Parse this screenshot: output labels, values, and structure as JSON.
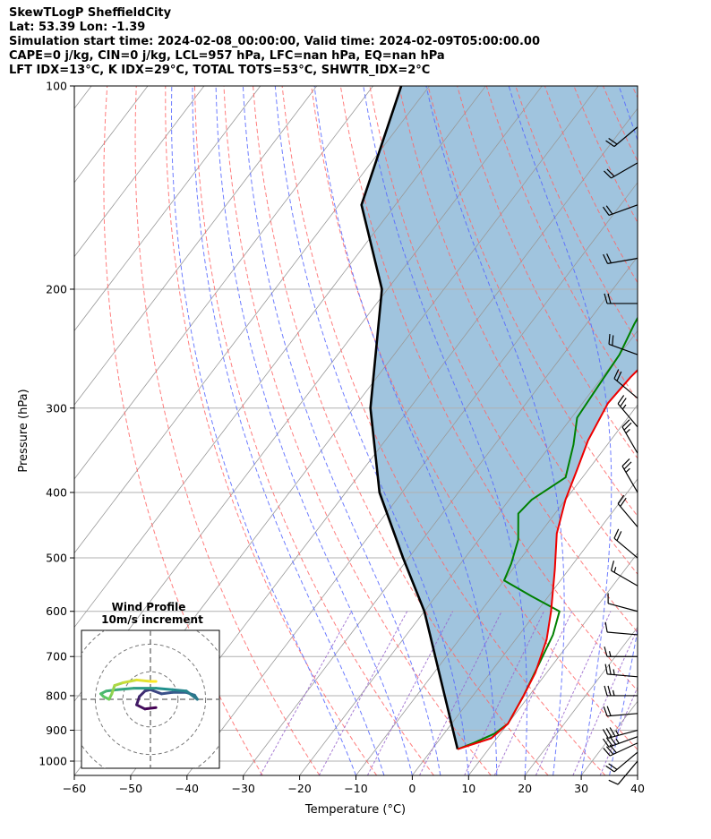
{
  "header": {
    "line1": "SkewTLogP SheffieldCity",
    "line2": "Lat: 53.39   Lon: -1.39",
    "line3": "Simulation start time: 2024-02-08_00:00:00, Valid time: 2024-02-09T05:00:00.00",
    "line4": "CAPE=0 j/kg, CIN=0 j/kg, LCL=957 hPa, LFC=nan hPa, EQ=nan hPa",
    "line5": "LFT IDX=13°C, K IDX=29°C, TOTAL TOTS=53°C, SHWTR_IDX=2°C"
  },
  "colors": {
    "temperature": "#ee0000",
    "dewpoint": "#008000",
    "parcel": "#000000",
    "fill": "#a0c4de",
    "dry_adiabat": "#ff6666",
    "moist_adiabat": "#5566ff",
    "mixing_ratio": "#9966cc",
    "isotherm": "#999999",
    "grid": "#b0b0b0"
  },
  "chart_data": [
    {
      "type": "line",
      "subtype": "skew-T log-p",
      "xlabel": "Temperature (°C)",
      "ylabel": "Pressure (hPa)",
      "x_ticks": [
        -60,
        -50,
        -40,
        -30,
        -20,
        -10,
        0,
        10,
        20,
        30,
        40
      ],
      "y_ticks": [
        100,
        200,
        300,
        400,
        500,
        600,
        700,
        800,
        900,
        1000
      ],
      "xlim": [
        -60,
        40
      ],
      "ylim": [
        1050,
        100
      ],
      "yscale": "log",
      "grid": true,
      "series": [
        {
          "role": "temperature",
          "points": [
            [
              4.5,
              960
            ],
            [
              9,
              925
            ],
            [
              10,
              880
            ],
            [
              9,
              800
            ],
            [
              8,
              740
            ],
            [
              5.5,
              660
            ],
            [
              2.5,
              600
            ],
            [
              -2.5,
              520
            ],
            [
              -7,
              460
            ],
            [
              -10,
              410
            ],
            [
              -12,
              370
            ],
            [
              -14,
              335
            ],
            [
              -15.5,
              295
            ],
            [
              -15,
              270
            ],
            [
              -14,
              250
            ],
            [
              -12,
              225
            ],
            [
              -9.5,
              210
            ],
            [
              -6,
              190
            ],
            [
              -6,
              170
            ],
            [
              -5,
              150
            ],
            [
              -3,
              130
            ],
            [
              0,
              110
            ],
            [
              2,
              100
            ]
          ]
        },
        {
          "role": "dewpoint",
          "points": [
            [
              4.5,
              960
            ],
            [
              6.5,
              940
            ],
            [
              9,
              910
            ],
            [
              10,
              880
            ],
            [
              9,
              800
            ],
            [
              7.5,
              720
            ],
            [
              6,
              650
            ],
            [
              4,
              600
            ],
            [
              -3,
              570
            ],
            [
              -10,
              540
            ],
            [
              -11,
              510
            ],
            [
              -13,
              470
            ],
            [
              -16.5,
              430
            ],
            [
              -16,
              410
            ],
            [
              -13,
              380
            ],
            [
              -16,
              340
            ],
            [
              -19,
              310
            ],
            [
              -19.5,
              280
            ],
            [
              -20,
              250
            ],
            [
              -21.5,
              225
            ],
            [
              -22.5,
              205
            ],
            [
              -21,
              190
            ],
            [
              -19.5,
              170
            ],
            [
              -18,
              150
            ],
            [
              -14,
              125
            ],
            [
              -10,
              110
            ],
            [
              -6,
              100
            ]
          ]
        },
        {
          "role": "parcel",
          "points": [
            [
              4.5,
              960
            ],
            [
              -5,
              800
            ],
            [
              -20,
              600
            ],
            [
              -31,
              500
            ],
            [
              -44,
              400
            ],
            [
              -57,
              300
            ],
            [
              -71,
              200
            ],
            [
              -86,
              150
            ],
            [
              -95,
              100
            ]
          ]
        }
      ]
    },
    {
      "type": "line",
      "subtype": "hodograph",
      "title": "Wind Profile",
      "subtitle": "10m/s increment",
      "u_ticks_ms": [
        -20,
        -10,
        0,
        10,
        20
      ],
      "ring_step_ms": 10,
      "series": [
        {
          "role": "wind hodograph",
          "points": [
            [
              2,
              -3
            ],
            [
              -2,
              -3.5
            ],
            [
              -5,
              -2
            ],
            [
              -4,
              1
            ],
            [
              -2,
              3
            ],
            [
              0,
              3.5
            ],
            [
              4,
              2
            ],
            [
              8,
              2.5
            ],
            [
              13,
              2.5
            ],
            [
              16,
              1.5
            ],
            [
              17,
              0
            ],
            [
              13,
              3
            ],
            [
              8,
              3.5
            ],
            [
              2,
              4
            ],
            [
              -6,
              4
            ],
            [
              -12,
              3.5
            ],
            [
              -16,
              3
            ],
            [
              -18,
              2
            ],
            [
              -17,
              1
            ],
            [
              -15,
              0
            ],
            [
              -14,
              2
            ],
            [
              -13,
              5
            ],
            [
              -10,
              6
            ],
            [
              -5,
              7
            ],
            [
              0,
              6.5
            ],
            [
              2,
              6.5
            ]
          ]
        }
      ]
    },
    {
      "type": "scatter",
      "subtype": "wind barbs",
      "barbs": [
        {
          "p": 1000,
          "speed_kt": 12,
          "dir_deg": 220
        },
        {
          "p": 970,
          "speed_kt": 22,
          "dir_deg": 230
        },
        {
          "p": 940,
          "speed_kt": 32,
          "dir_deg": 245
        },
        {
          "p": 920,
          "speed_kt": 35,
          "dir_deg": 250
        },
        {
          "p": 900,
          "speed_kt": 37,
          "dir_deg": 255
        },
        {
          "p": 850,
          "speed_kt": 20,
          "dir_deg": 265
        },
        {
          "p": 800,
          "speed_kt": 25,
          "dir_deg": 270
        },
        {
          "p": 750,
          "speed_kt": 25,
          "dir_deg": 275
        },
        {
          "p": 700,
          "speed_kt": 15,
          "dir_deg": 270
        },
        {
          "p": 650,
          "speed_kt": 10,
          "dir_deg": 275
        },
        {
          "p": 600,
          "speed_kt": 10,
          "dir_deg": 285
        },
        {
          "p": 550,
          "speed_kt": 15,
          "dir_deg": 300
        },
        {
          "p": 500,
          "speed_kt": 20,
          "dir_deg": 310
        },
        {
          "p": 450,
          "speed_kt": 20,
          "dir_deg": 320
        },
        {
          "p": 400,
          "speed_kt": 25,
          "dir_deg": 330
        },
        {
          "p": 350,
          "speed_kt": 25,
          "dir_deg": 330
        },
        {
          "p": 320,
          "speed_kt": 25,
          "dir_deg": 320
        },
        {
          "p": 290,
          "speed_kt": 20,
          "dir_deg": 310
        },
        {
          "p": 250,
          "speed_kt": 20,
          "dir_deg": 290
        },
        {
          "p": 210,
          "speed_kt": 20,
          "dir_deg": 270
        },
        {
          "p": 180,
          "speed_kt": 20,
          "dir_deg": 260
        },
        {
          "p": 150,
          "speed_kt": 20,
          "dir_deg": 250
        },
        {
          "p": 130,
          "speed_kt": 20,
          "dir_deg": 240
        },
        {
          "p": 115,
          "speed_kt": 20,
          "dir_deg": 230
        }
      ]
    }
  ]
}
